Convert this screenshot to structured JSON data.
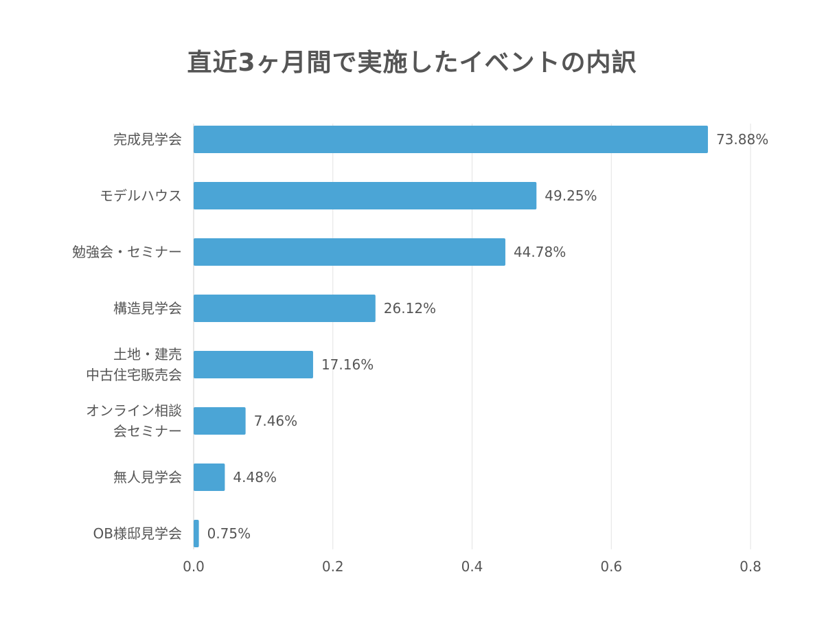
{
  "chart_data": {
    "type": "bar",
    "orientation": "horizontal",
    "title": "直近3ヶ月間で実施したイベントの内訳",
    "categories": [
      "完成見学会",
      "モデルハウス",
      "勉強会・セミナー",
      "構造見学会",
      "土地・建売\n中古住宅販売会",
      "オンライン相談\n会セミナー",
      "無人見学会",
      "OB様邸見学会"
    ],
    "values": [
      0.7388,
      0.4925,
      0.4478,
      0.2612,
      0.1716,
      0.0746,
      0.0448,
      0.0075
    ],
    "data_labels": [
      "73.88%",
      "49.25%",
      "44.78%",
      "26.12%",
      "17.16%",
      "7.46%",
      "4.48%",
      "0.75%"
    ],
    "xlim": [
      0,
      0.8
    ],
    "xticks": [
      "0.0",
      "0.2",
      "0.4",
      "0.6",
      "0.8"
    ],
    "grid": true,
    "bar_color": "#4ba5d6",
    "text_color": "#555555",
    "grid_color": "#e3e3e3"
  }
}
